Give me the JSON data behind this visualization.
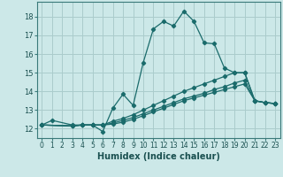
{
  "title": "",
  "xlabel": "Humidex (Indice chaleur)",
  "bg_color": "#cce8e8",
  "grid_color": "#aacccc",
  "line_color": "#1a6b6b",
  "xlim": [
    -0.5,
    23.5
  ],
  "ylim": [
    11.5,
    18.8
  ],
  "xticks": [
    0,
    1,
    2,
    3,
    4,
    5,
    6,
    7,
    8,
    9,
    10,
    11,
    12,
    13,
    14,
    15,
    16,
    17,
    18,
    19,
    20,
    21,
    22,
    23
  ],
  "yticks": [
    12,
    13,
    14,
    15,
    16,
    17,
    18
  ],
  "series": [
    {
      "x": [
        0,
        1,
        3,
        4,
        5,
        6,
        7,
        8,
        9,
        10,
        11,
        12,
        13,
        14,
        15,
        16,
        17,
        18,
        19,
        20,
        21,
        22,
        23
      ],
      "y": [
        12.2,
        12.45,
        12.2,
        12.2,
        12.2,
        11.85,
        13.1,
        13.85,
        13.25,
        15.55,
        17.35,
        17.75,
        17.5,
        18.3,
        17.75,
        16.6,
        16.55,
        15.25,
        15.0,
        15.0,
        13.5,
        13.4,
        13.35
      ]
    },
    {
      "x": [
        0,
        3,
        4,
        5,
        6,
        7,
        8,
        9,
        10,
        11,
        12,
        13,
        14,
        15,
        16,
        17,
        18,
        19,
        20,
        21,
        22,
        23
      ],
      "y": [
        12.2,
        12.15,
        12.2,
        12.2,
        12.2,
        12.4,
        12.55,
        12.75,
        13.0,
        13.25,
        13.5,
        13.75,
        14.0,
        14.2,
        14.4,
        14.6,
        14.8,
        15.0,
        15.0,
        13.5,
        13.4,
        13.35
      ]
    },
    {
      "x": [
        0,
        3,
        4,
        5,
        6,
        7,
        8,
        9,
        10,
        11,
        12,
        13,
        14,
        15,
        16,
        17,
        18,
        19,
        20,
        21,
        22,
        23
      ],
      "y": [
        12.2,
        12.15,
        12.2,
        12.2,
        12.2,
        12.3,
        12.45,
        12.6,
        12.8,
        13.0,
        13.2,
        13.4,
        13.6,
        13.75,
        13.9,
        14.1,
        14.25,
        14.45,
        14.6,
        13.5,
        13.4,
        13.35
      ]
    },
    {
      "x": [
        0,
        3,
        4,
        5,
        6,
        7,
        8,
        9,
        10,
        11,
        12,
        13,
        14,
        15,
        16,
        17,
        18,
        19,
        20,
        21,
        22,
        23
      ],
      "y": [
        12.2,
        12.15,
        12.2,
        12.2,
        12.2,
        12.25,
        12.35,
        12.5,
        12.7,
        12.9,
        13.1,
        13.3,
        13.5,
        13.65,
        13.8,
        13.95,
        14.1,
        14.25,
        14.4,
        13.5,
        13.4,
        13.35
      ]
    }
  ]
}
